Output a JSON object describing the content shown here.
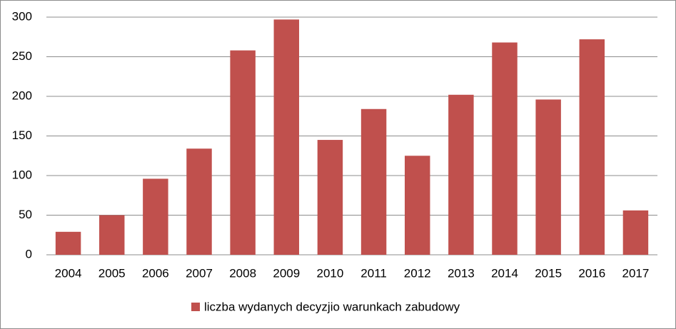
{
  "chart_data": {
    "type": "bar",
    "categories": [
      "2004",
      "2005",
      "2006",
      "2007",
      "2008",
      "2009",
      "2010",
      "2011",
      "2012",
      "2013",
      "2014",
      "2015",
      "2016",
      "2017"
    ],
    "series": [
      {
        "name": "liczba wydanych decyzjio warunkach zabudowy",
        "color": "#c0504d",
        "values": [
          29,
          50,
          96,
          134,
          258,
          297,
          145,
          184,
          125,
          202,
          268,
          196,
          272,
          56
        ]
      }
    ],
    "ylim": [
      0,
      300
    ],
    "yticks": [
      0,
      50,
      100,
      150,
      200,
      250,
      300
    ],
    "grid": true,
    "legend": "bottom"
  }
}
